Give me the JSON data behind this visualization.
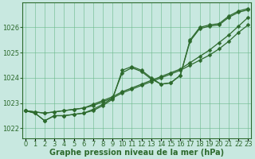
{
  "xlabel": "Graphe pression niveau de la mer (hPa)",
  "x": [
    0,
    1,
    2,
    3,
    4,
    5,
    6,
    7,
    8,
    9,
    10,
    11,
    12,
    13,
    14,
    15,
    16,
    17,
    18,
    19,
    20,
    21,
    22,
    23
  ],
  "line_straight1": [
    1022.7,
    1022.65,
    1022.6,
    1022.65,
    1022.7,
    1022.75,
    1022.8,
    1022.9,
    1023.05,
    1023.2,
    1023.4,
    1023.55,
    1023.7,
    1023.85,
    1024.0,
    1024.15,
    1024.3,
    1024.5,
    1024.7,
    1024.9,
    1025.15,
    1025.45,
    1025.8,
    1026.1
  ],
  "line_straight2": [
    1022.7,
    1022.65,
    1022.6,
    1022.65,
    1022.7,
    1022.75,
    1022.8,
    1022.95,
    1023.1,
    1023.25,
    1023.45,
    1023.6,
    1023.75,
    1023.9,
    1024.05,
    1024.2,
    1024.35,
    1024.6,
    1024.85,
    1025.1,
    1025.4,
    1025.7,
    1026.05,
    1026.4
  ],
  "line_wavy": [
    1022.7,
    1022.6,
    1022.3,
    1022.5,
    1022.5,
    1022.55,
    1022.6,
    1022.7,
    1022.9,
    1023.15,
    1024.3,
    1024.45,
    1024.3,
    1024.0,
    1023.75,
    1023.8,
    1024.1,
    1025.5,
    1026.0,
    1026.1,
    1026.15,
    1026.45,
    1026.65,
    1026.75
  ],
  "line_wavy2": [
    1022.7,
    1022.6,
    1022.3,
    1022.5,
    1022.5,
    1022.55,
    1022.6,
    1022.75,
    1022.95,
    1023.2,
    1024.2,
    1024.4,
    1024.25,
    1023.95,
    1023.75,
    1023.8,
    1024.1,
    1025.45,
    1025.95,
    1026.05,
    1026.1,
    1026.4,
    1026.6,
    1026.7
  ],
  "line_color": "#2d6a2d",
  "bg_color": "#c8e8e0",
  "grid_color": "#6ab88a",
  "ylim": [
    1021.6,
    1027.0
  ],
  "yticks": [
    1022,
    1023,
    1024,
    1025,
    1026
  ],
  "marker": "D",
  "markersize": 2.5,
  "linewidth": 0.9,
  "label_fontsize": 7,
  "tick_fontsize": 6,
  "label_fontweight": "bold",
  "xlim": [
    -0.3,
    23.3
  ]
}
